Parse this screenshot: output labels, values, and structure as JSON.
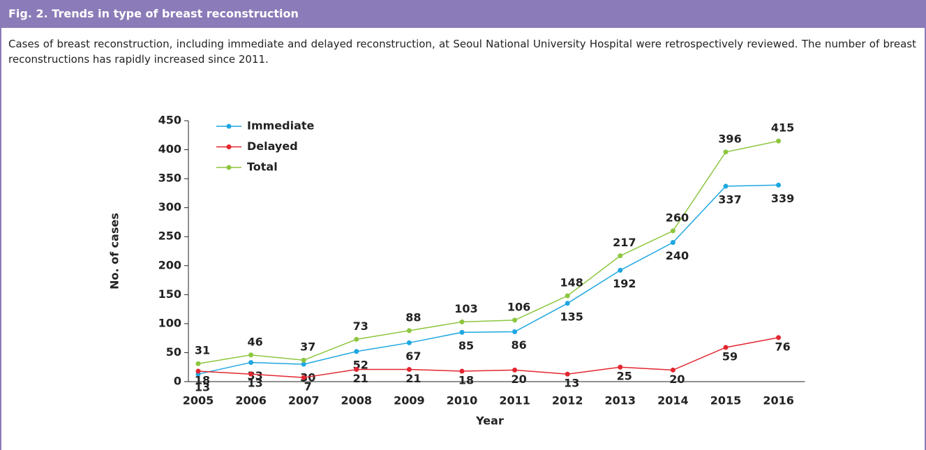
{
  "header": {
    "title": "Fig. 2. Trends in type of breast reconstruction",
    "caption": "Cases of breast reconstruction, including immediate and delayed reconstruction, at Seoul National University Hospital were retrospectively reviewed. The number of breast reconstructions has rapidly increased since 2011."
  },
  "chart_data": {
    "type": "line",
    "xlabel": "Year",
    "ylabel": "No. of cases",
    "categories": [
      "2005",
      "2006",
      "2007",
      "2008",
      "2009",
      "2010",
      "2011",
      "2012",
      "2013",
      "2014",
      "2015",
      "2016"
    ],
    "series": [
      {
        "name": "Immediate",
        "color": "#1ea7e1",
        "values": [
          13,
          33,
          30,
          52,
          67,
          85,
          86,
          135,
          192,
          240,
          337,
          339
        ]
      },
      {
        "name": "Delayed",
        "color": "#e3262f",
        "values": [
          18,
          13,
          7,
          21,
          21,
          18,
          20,
          13,
          25,
          20,
          59,
          76
        ]
      },
      {
        "name": "Total",
        "color": "#8dc63f",
        "values": [
          31,
          46,
          37,
          73,
          88,
          103,
          106,
          148,
          217,
          260,
          396,
          415
        ]
      }
    ],
    "ylim": [
      0,
      450
    ],
    "yticks": [
      0,
      50,
      100,
      150,
      200,
      250,
      300,
      350,
      400,
      450
    ],
    "legend": "upper left"
  }
}
